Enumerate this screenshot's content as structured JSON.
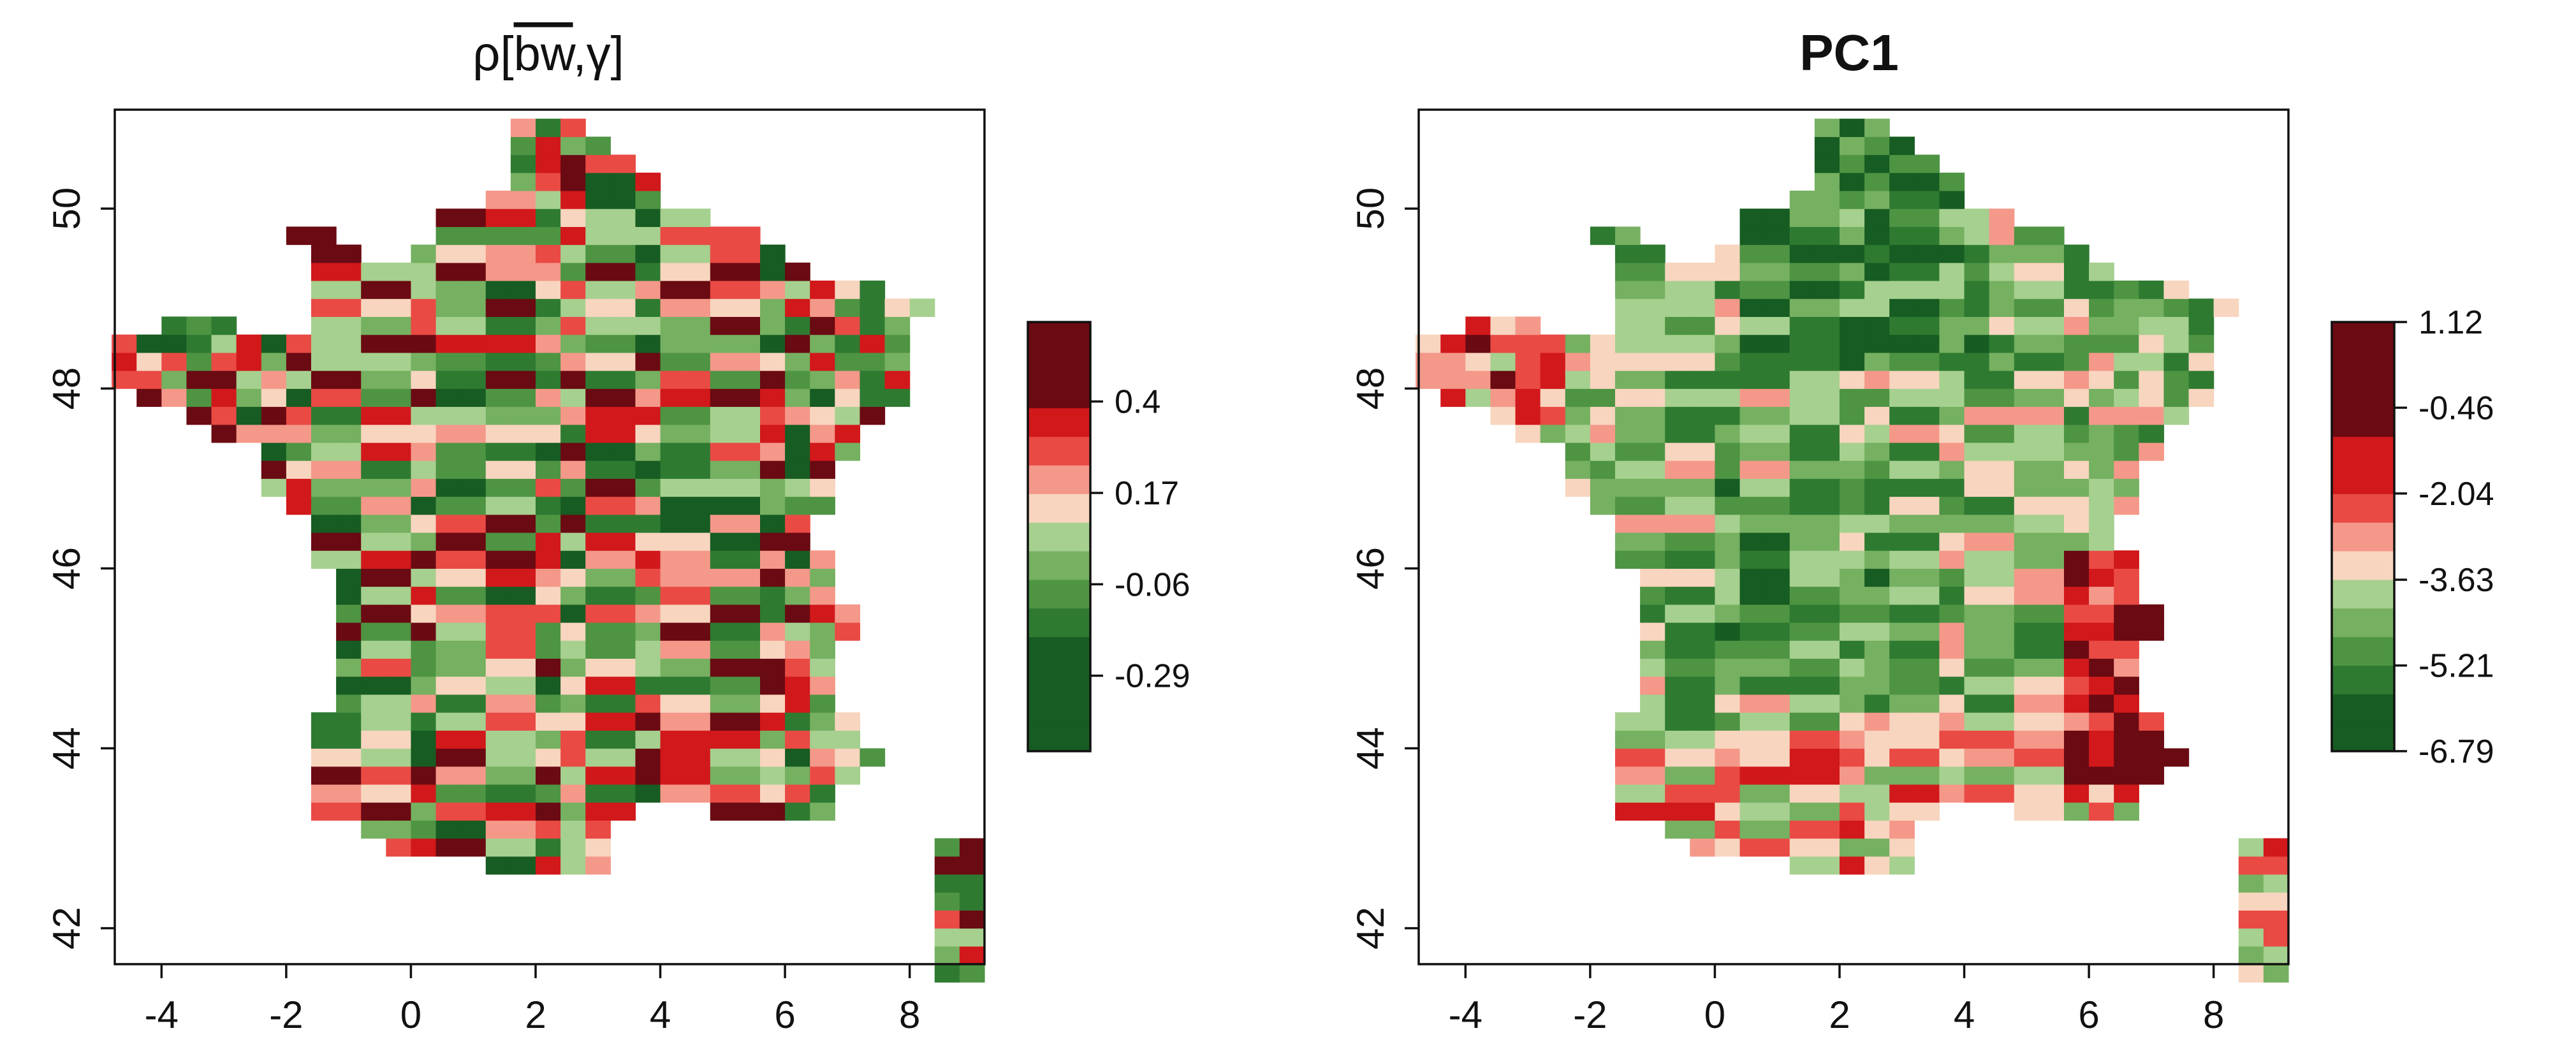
{
  "chart_data": [
    {
      "type": "heatmap",
      "title": "ρ[bw,γ]",
      "title_overlined_segment": "bw",
      "xlabel": "",
      "ylabel": "",
      "xlim": [
        -4.75,
        9.2
      ],
      "ylim": [
        41.6,
        51.1
      ],
      "x_ticks": [
        -4,
        -2,
        0,
        2,
        4,
        6,
        8
      ],
      "y_ticks": [
        42,
        44,
        46,
        48,
        50
      ],
      "grid": false,
      "cell_size_deg": [
        0.4,
        0.2
      ],
      "colorbar": {
        "position": "right",
        "tick_labels": [
          "0.4",
          "0.17",
          "-0.06",
          "-0.29"
        ],
        "tick_values": [
          0.4,
          0.17,
          -0.06,
          -0.29
        ],
        "range": [
          -0.48,
          0.6
        ],
        "colors": [
          "#175c22",
          "#175c22",
          "#175c22",
          "#175c22",
          "#2e7a31",
          "#4e9443",
          "#76b061",
          "#a6d08f",
          "#f8d5bf",
          "#f4988a",
          "#e94a44",
          "#d1181b",
          "#6a0a12",
          "#6a0a12",
          "#6a0a12"
        ]
      },
      "palette": [
        "#175c22",
        "#2e7a31",
        "#4e9443",
        "#76b061",
        "#a6d08f",
        "#f8d5bf",
        "#f4988a",
        "#e94a44",
        "#d1181b",
        "#6a0a12"
      ],
      "region": "France (mainland and Corsica) grid of cells"
    },
    {
      "type": "heatmap",
      "title": "PC1",
      "xlabel": "",
      "ylabel": "",
      "xlim": [
        -4.75,
        9.2
      ],
      "ylim": [
        41.6,
        51.1
      ],
      "x_ticks": [
        -4,
        -2,
        0,
        2,
        4,
        6,
        8
      ],
      "y_ticks": [
        42,
        44,
        46,
        48,
        50
      ],
      "grid": false,
      "cell_size_deg": [
        0.4,
        0.2
      ],
      "colorbar": {
        "position": "right",
        "tick_labels": [
          "1.12",
          "-0.46",
          "-2.04",
          "-3.63",
          "-5.21",
          "-6.79"
        ],
        "tick_values": [
          1.12,
          -0.46,
          -2.04,
          -3.63,
          -5.21,
          -6.79
        ],
        "range": [
          -6.79,
          1.12
        ],
        "colors": [
          "#175c22",
          "#175c22",
          "#2e7a31",
          "#4e9443",
          "#76b061",
          "#a6d08f",
          "#f8d5bf",
          "#f4988a",
          "#e94a44",
          "#d1181b",
          "#d1181b",
          "#6a0a12",
          "#6a0a12",
          "#6a0a12",
          "#6a0a12"
        ]
      },
      "palette": [
        "#175c22",
        "#2e7a31",
        "#4e9443",
        "#76b061",
        "#a6d08f",
        "#f8d5bf",
        "#f4988a",
        "#e94a44",
        "#d1181b",
        "#6a0a12"
      ],
      "region": "France (mainland and Corsica) grid of cells"
    }
  ]
}
